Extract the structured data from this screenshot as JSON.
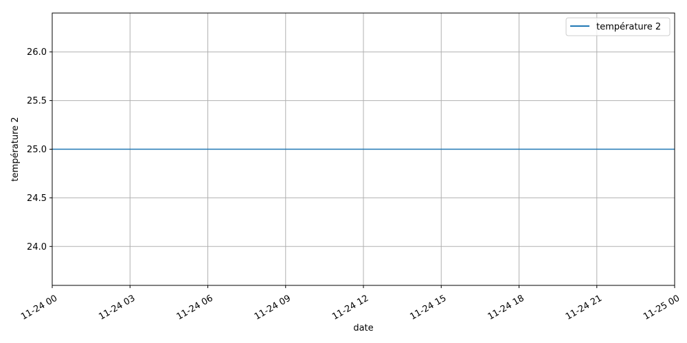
{
  "chart_data": {
    "type": "line",
    "xlabel": "date",
    "ylabel": "température 2",
    "x_ticks": [
      "11-24 00",
      "11-24 03",
      "11-24 06",
      "11-24 09",
      "11-24 12",
      "11-24 15",
      "11-24 18",
      "11-24 21",
      "11-25 00"
    ],
    "y_ticks": [
      "24.0",
      "24.5",
      "25.0",
      "25.5",
      "26.0"
    ],
    "xlim": [
      "11-24 00",
      "11-25 00"
    ],
    "ylim": [
      23.6,
      26.4
    ],
    "grid": true,
    "legend_position": "top-right",
    "series": [
      {
        "name": "température 2",
        "color": "#1f77b4",
        "x": [
          "11-24 00",
          "11-25 00"
        ],
        "y": [
          25.0,
          25.0
        ]
      }
    ]
  }
}
